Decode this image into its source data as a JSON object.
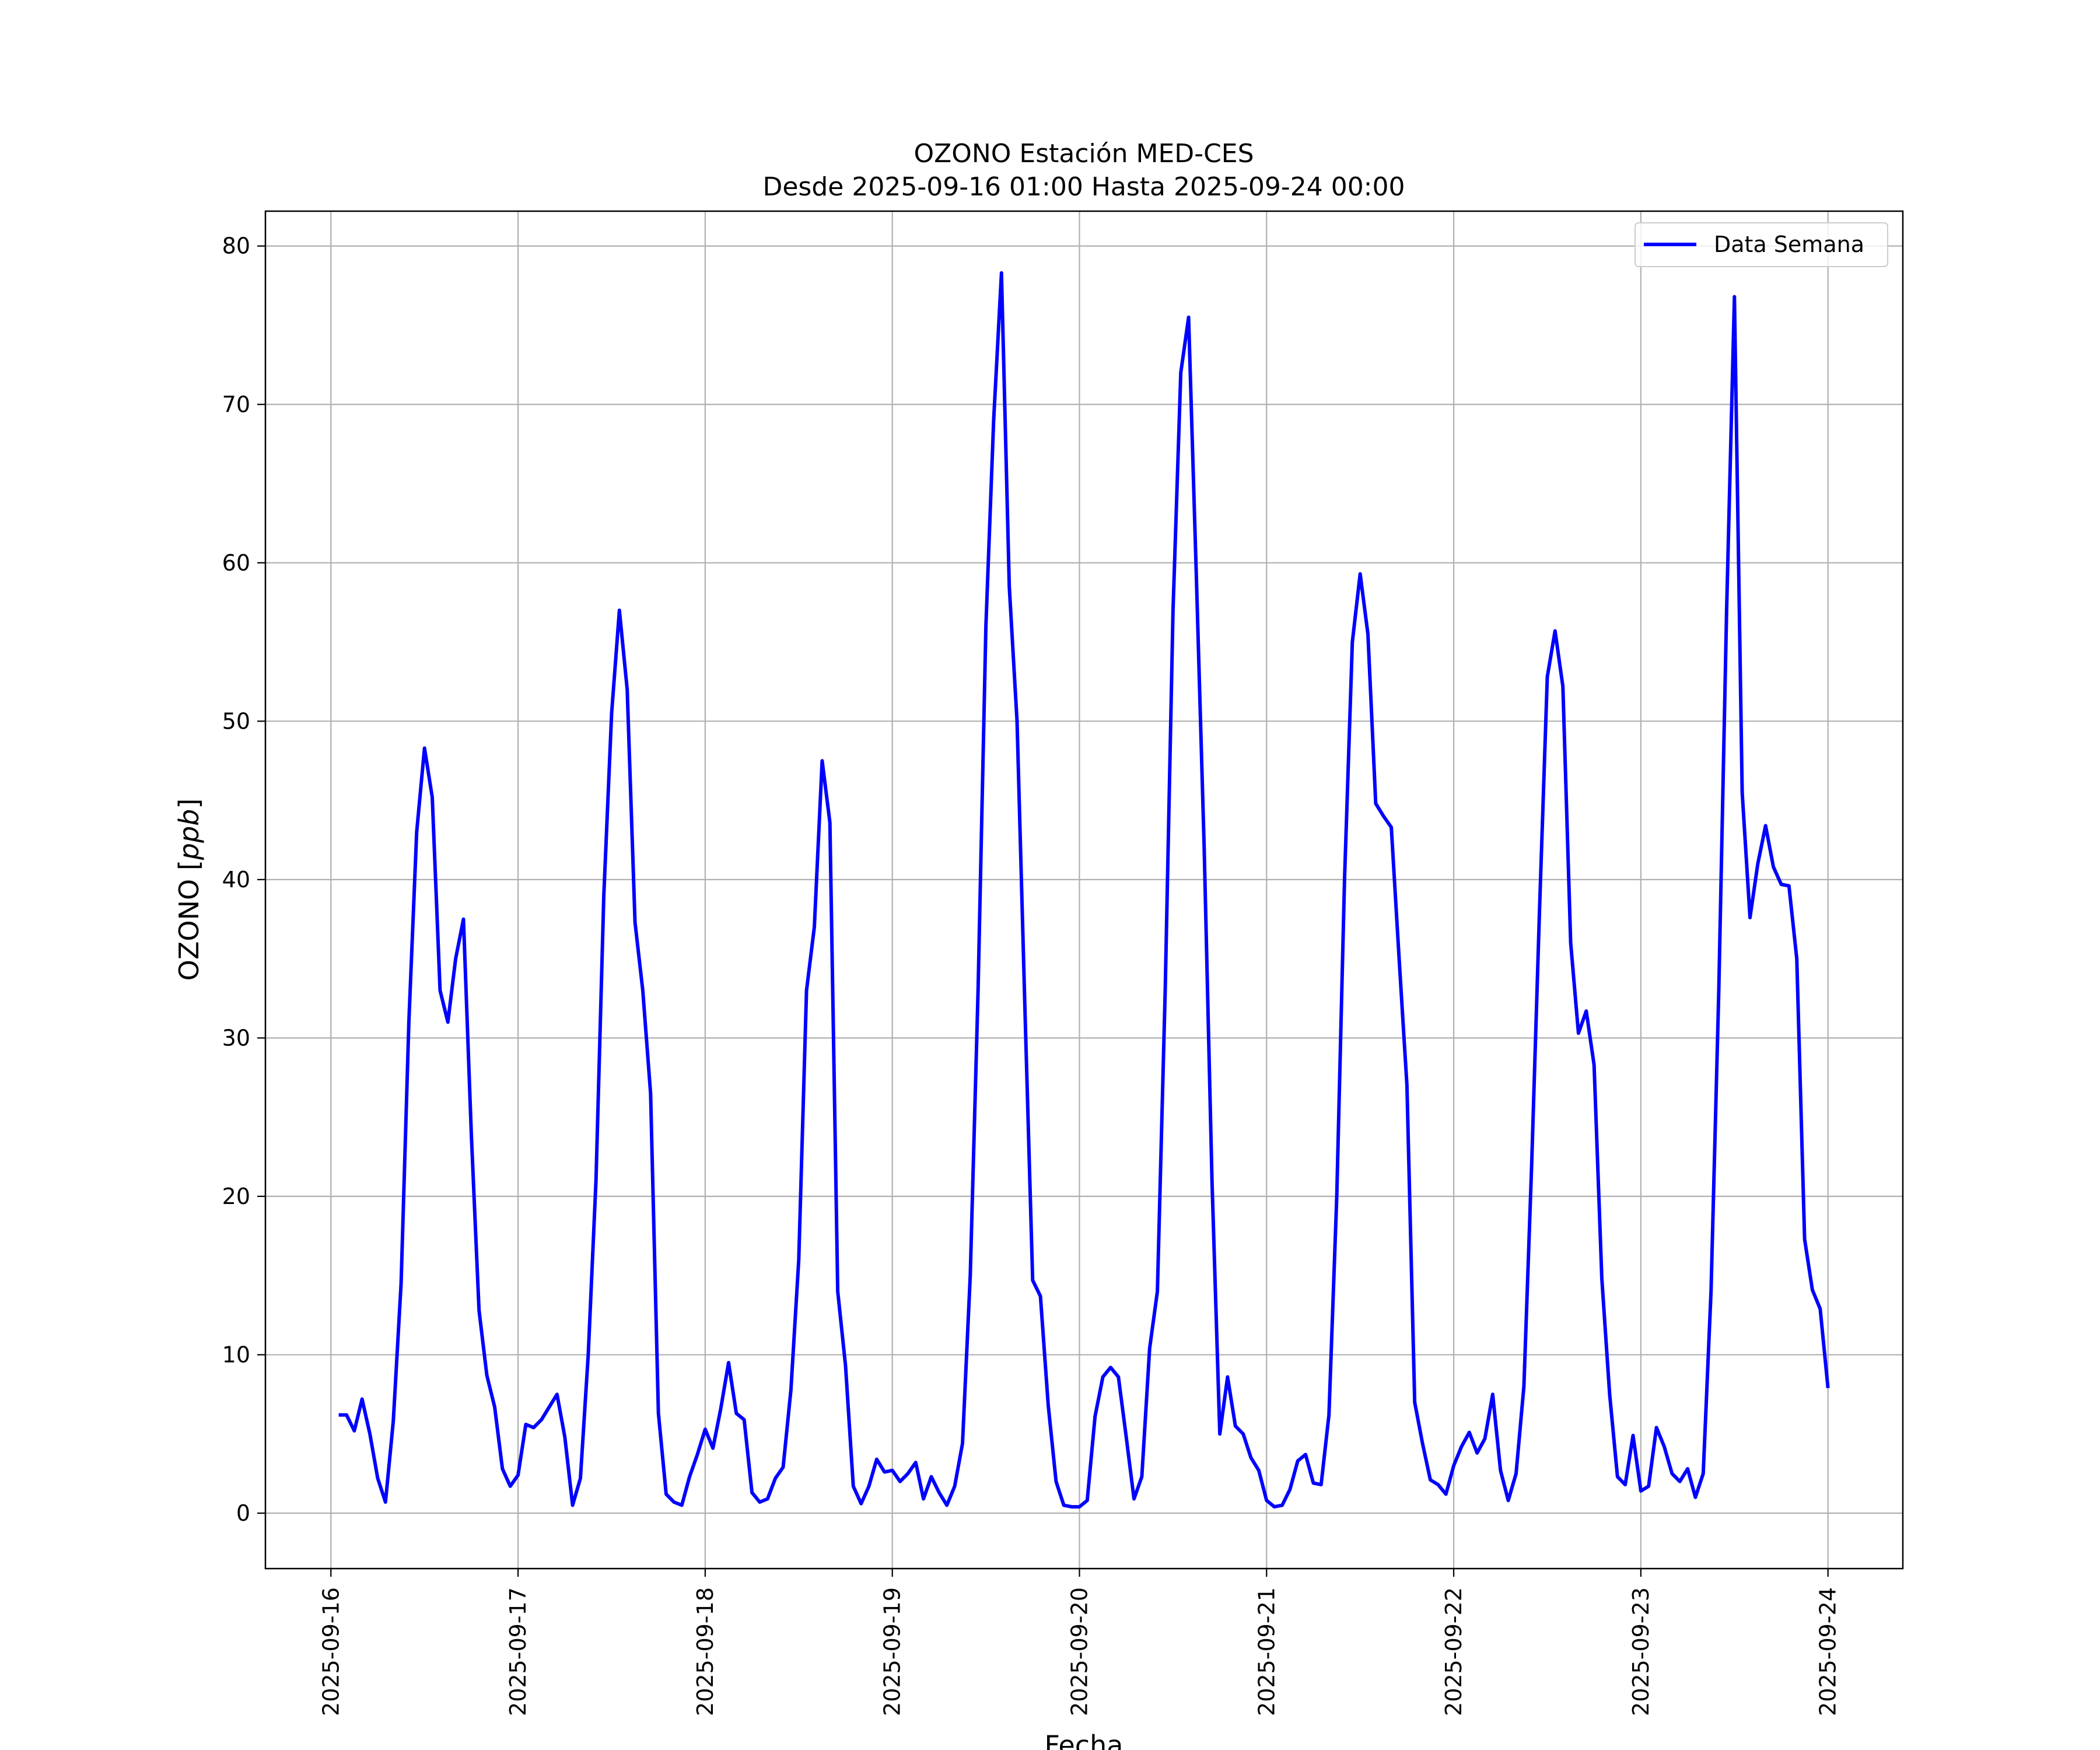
{
  "chart_data": {
    "type": "line",
    "title": "OZONO Estación MED-CES",
    "subtitle": "Desde 2025-09-16 01:00 Hasta 2025-09-24 00:00",
    "xlabel": "Fecha",
    "ylabel": "OZONO [ppb]",
    "ylabel_parts": [
      "OZONO [",
      "ppb",
      "]"
    ],
    "x_tick_labels": [
      "2025-09-16",
      "2025-09-17",
      "2025-09-18",
      "2025-09-19",
      "2025-09-20",
      "2025-09-21",
      "2025-09-22",
      "2025-09-23",
      "2025-09-24"
    ],
    "y_ticks": [
      0,
      10,
      20,
      30,
      40,
      50,
      60,
      70,
      80
    ],
    "xlim_days": [
      -0.35,
      8.4
    ],
    "ylim": [
      -3.5,
      82.2
    ],
    "grid": true,
    "legend_position": "top-right",
    "series": [
      {
        "name": "Data Semana",
        "color": "#0000ff",
        "start": "2025-09-16 01:00",
        "step_hours": 1,
        "values": [
          6.2,
          6.2,
          5.2,
          7.2,
          5.0,
          2.2,
          0.7,
          5.8,
          14.5,
          31.0,
          43.0,
          48.3,
          45.2,
          33.0,
          31.0,
          35.0,
          37.5,
          24.0,
          12.8,
          8.7,
          6.7,
          2.8,
          1.7,
          2.4,
          5.6,
          5.4,
          5.9,
          6.7,
          7.5,
          4.8,
          0.5,
          2.2,
          10.0,
          21.0,
          39.0,
          50.5,
          57.0,
          52.0,
          37.3,
          33.0,
          26.5,
          6.3,
          1.2,
          0.7,
          0.5,
          2.3,
          3.7,
          5.3,
          4.1,
          6.6,
          9.5,
          6.3,
          5.9,
          1.3,
          0.7,
          0.9,
          2.2,
          2.9,
          7.8,
          16.0,
          33.0,
          37.0,
          47.5,
          43.6,
          14.0,
          9.3,
          1.7,
          0.6,
          1.7,
          3.4,
          2.6,
          2.7,
          2.0,
          2.5,
          3.2,
          0.9,
          2.3,
          1.3,
          0.5,
          1.7,
          4.4,
          15.0,
          33.0,
          56.0,
          69.0,
          78.3,
          58.5,
          50.0,
          32.0,
          14.7,
          13.7,
          6.8,
          2.0,
          0.5,
          0.4,
          0.4,
          0.8,
          6.1,
          8.6,
          9.2,
          8.6,
          4.8,
          0.9,
          2.3,
          10.4,
          14.0,
          33.0,
          57.0,
          72.0,
          75.5,
          59.0,
          42.0,
          21.0,
          5.0,
          8.6,
          5.5,
          5.0,
          3.5,
          2.7,
          0.8,
          0.4,
          0.5,
          1.5,
          3.3,
          3.7,
          1.9,
          1.8,
          6.2,
          20.0,
          40.0,
          55.0,
          59.3,
          55.5,
          44.8,
          44.0,
          43.3,
          35.0,
          27.0,
          7.0,
          4.4,
          2.1,
          1.8,
          1.2,
          3.0,
          4.2,
          5.1,
          3.8,
          4.7,
          7.5,
          2.7,
          0.8,
          2.5,
          8.0,
          22.0,
          38.0,
          52.8,
          55.7,
          52.2,
          36.0,
          30.3,
          31.7,
          28.3,
          14.8,
          7.5,
          2.3,
          1.8,
          4.9,
          1.4,
          1.7,
          5.4,
          4.2,
          2.5,
          2.0,
          2.8,
          1.0,
          2.5,
          14.0,
          33.0,
          57.0,
          76.8,
          45.5,
          37.6,
          41.0,
          43.4,
          40.8,
          39.7,
          39.6,
          35.0,
          17.3,
          14.1,
          12.9,
          7.9
        ]
      }
    ]
  }
}
